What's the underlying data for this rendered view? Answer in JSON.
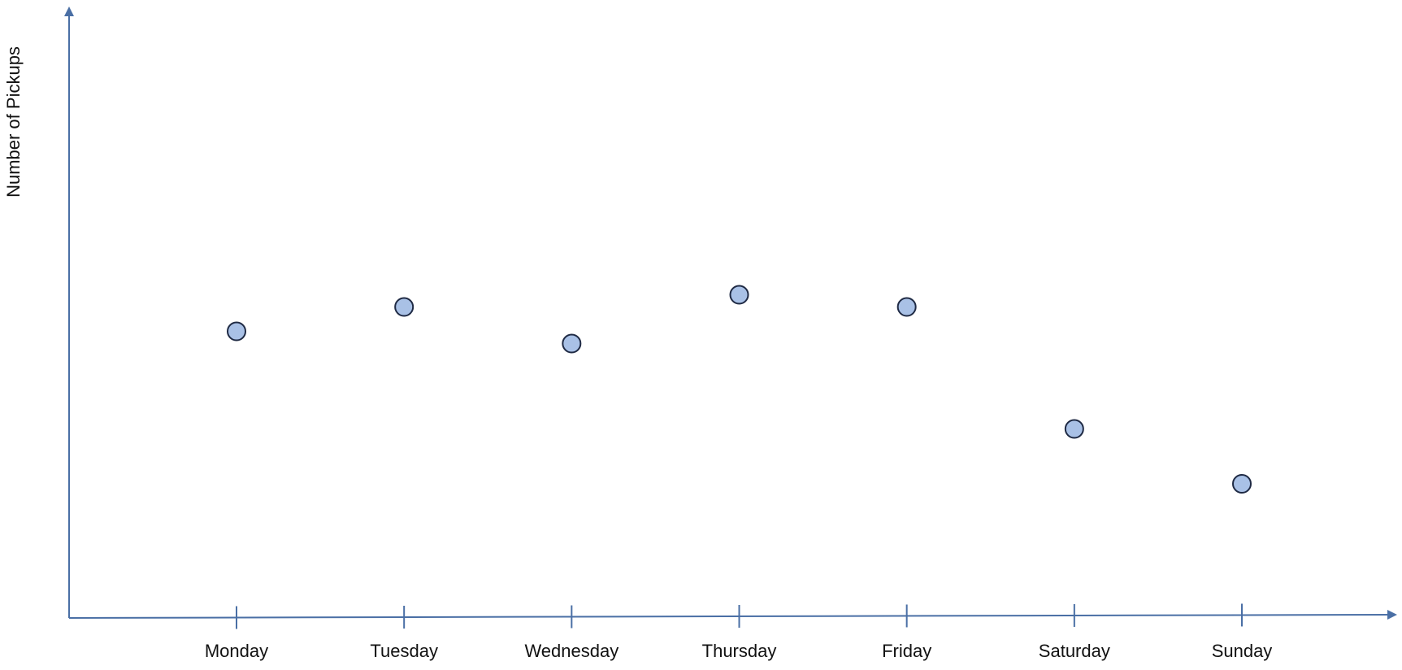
{
  "chart_data": {
    "type": "scatter",
    "title": "",
    "xlabel": "",
    "ylabel": "Number of Pickups",
    "categories": [
      "Monday",
      "Tuesday",
      "Wednesday",
      "Thursday",
      "Friday",
      "Saturday",
      "Sunday"
    ],
    "values": [
      47,
      51,
      45,
      53,
      51,
      31,
      22
    ],
    "ylim": [
      0,
      100
    ],
    "y_ticks_shown": false,
    "grid": false,
    "legend": "none"
  },
  "colors": {
    "axis": "#4a6fa5",
    "point_fill": "#a9c1e6",
    "point_stroke": "#1f2a44",
    "text": "#111111"
  }
}
